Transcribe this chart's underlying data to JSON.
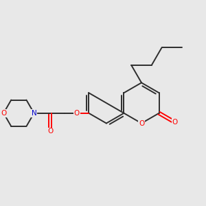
{
  "bg_color": "#e8e8e8",
  "bond_color": "#2d2d2d",
  "oxygen_color": "#ff0000",
  "nitrogen_color": "#0000cc",
  "line_width": 1.4,
  "dbo": 0.12,
  "figsize": [
    3.0,
    3.0
  ],
  "dpi": 100,
  "xlim": [
    0,
    10
  ],
  "ylim": [
    0,
    10
  ]
}
